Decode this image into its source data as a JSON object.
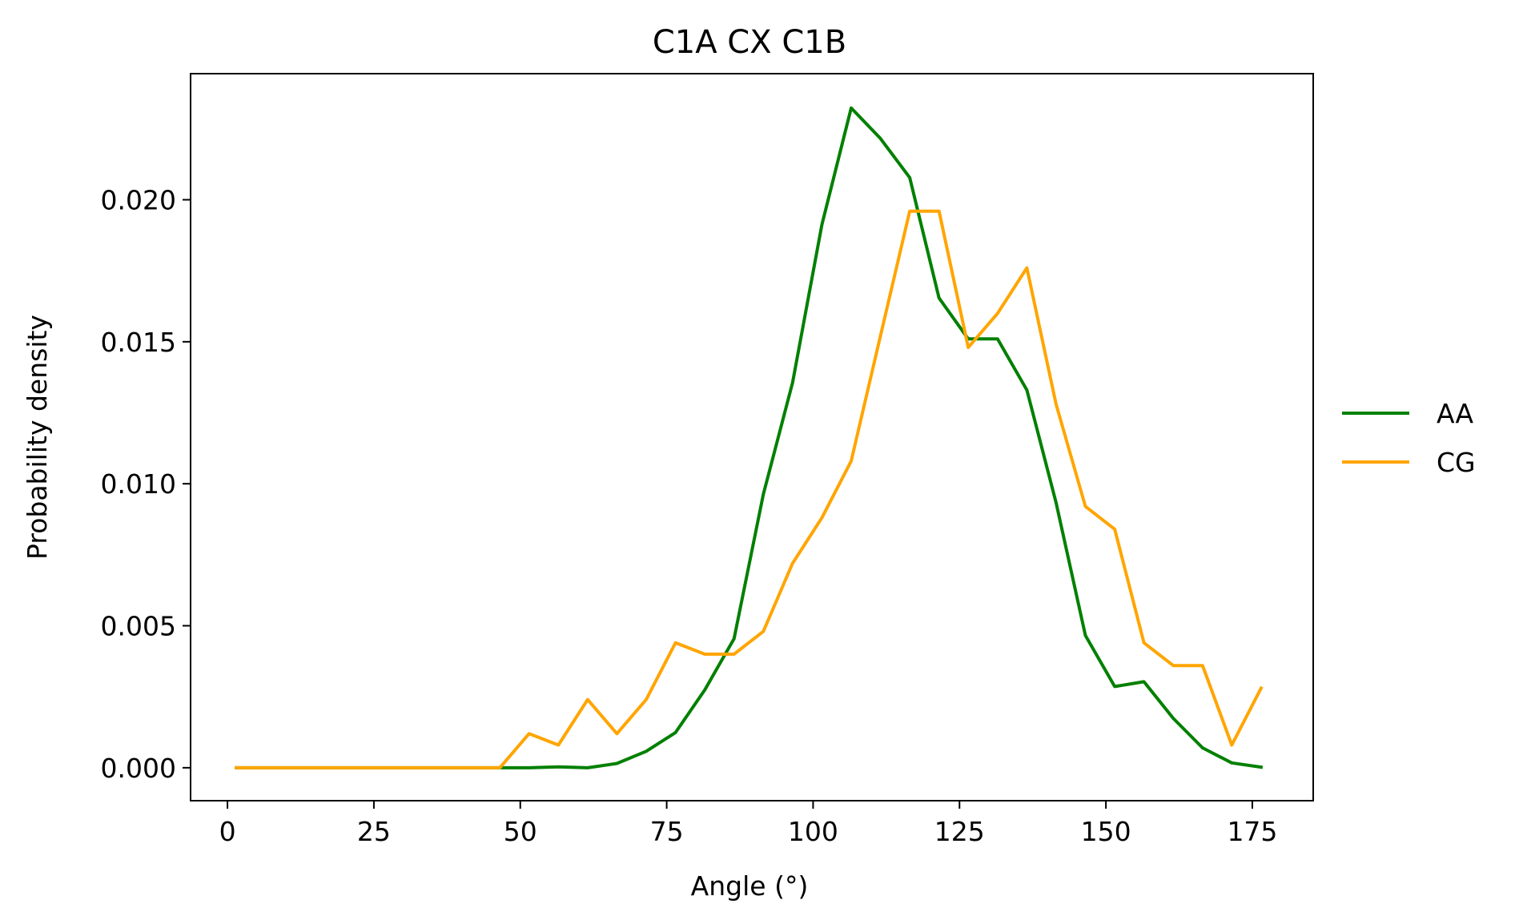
{
  "chart_data": {
    "type": "line",
    "title": "C1A CX C1B",
    "xlabel": "Angle (°)",
    "ylabel": "Probability density",
    "xlim": [
      -6.3,
      185.4
    ],
    "ylim": [
      -0.00116,
      0.02444
    ],
    "xticks": [
      0,
      25,
      50,
      75,
      100,
      125,
      150,
      175
    ],
    "xtick_labels": [
      "0",
      "25",
      "50",
      "75",
      "100",
      "125",
      "150",
      "175"
    ],
    "yticks": [
      0,
      0.005,
      0.01,
      0.015,
      0.02
    ],
    "ytick_labels": [
      "0.000",
      "0.005",
      "0.010",
      "0.015",
      "0.020"
    ],
    "grid": false,
    "legend_position": "outside-right",
    "x": [
      1.5,
      6.5,
      11.5,
      16.5,
      21.5,
      26.5,
      31.5,
      36.5,
      41.5,
      46.5,
      51.5,
      56.5,
      61.5,
      66.5,
      71.5,
      76.5,
      81.5,
      86.5,
      91.5,
      96.5,
      101.5,
      106.5,
      111.5,
      116.5,
      121.5,
      126.5,
      131.5,
      136.5,
      141.5,
      146.5,
      151.5,
      156.5,
      161.5,
      166.5,
      171.5,
      176.5
    ],
    "series": [
      {
        "name": "AA",
        "color": "#008000",
        "values": [
          0,
          0,
          0,
          0,
          0,
          0,
          0,
          0,
          0,
          0,
          0,
          3e-05,
          0,
          0.00015,
          0.00058,
          0.00124,
          0.00274,
          0.00454,
          0.00963,
          0.01356,
          0.01912,
          0.02323,
          0.02216,
          0.02078,
          0.01654,
          0.0151,
          0.0151,
          0.0133,
          0.00933,
          0.00466,
          0.00286,
          0.00303,
          0.00174,
          0.0007,
          0.00017,
          2e-05
        ]
      },
      {
        "name": "CG",
        "color": "#ffa500",
        "values": [
          0,
          0,
          0,
          0,
          0,
          0,
          0,
          0,
          0,
          0,
          0.0012,
          0.0008,
          0.0024,
          0.0012,
          0.0024,
          0.0044,
          0.004,
          0.004,
          0.0048,
          0.0072,
          0.0088,
          0.0108,
          0.0152,
          0.0196,
          0.0196,
          0.0148,
          0.016,
          0.0176,
          0.0128,
          0.0092,
          0.0084,
          0.0044,
          0.0036,
          0.0036,
          0.0008,
          0.0028
        ]
      }
    ]
  }
}
